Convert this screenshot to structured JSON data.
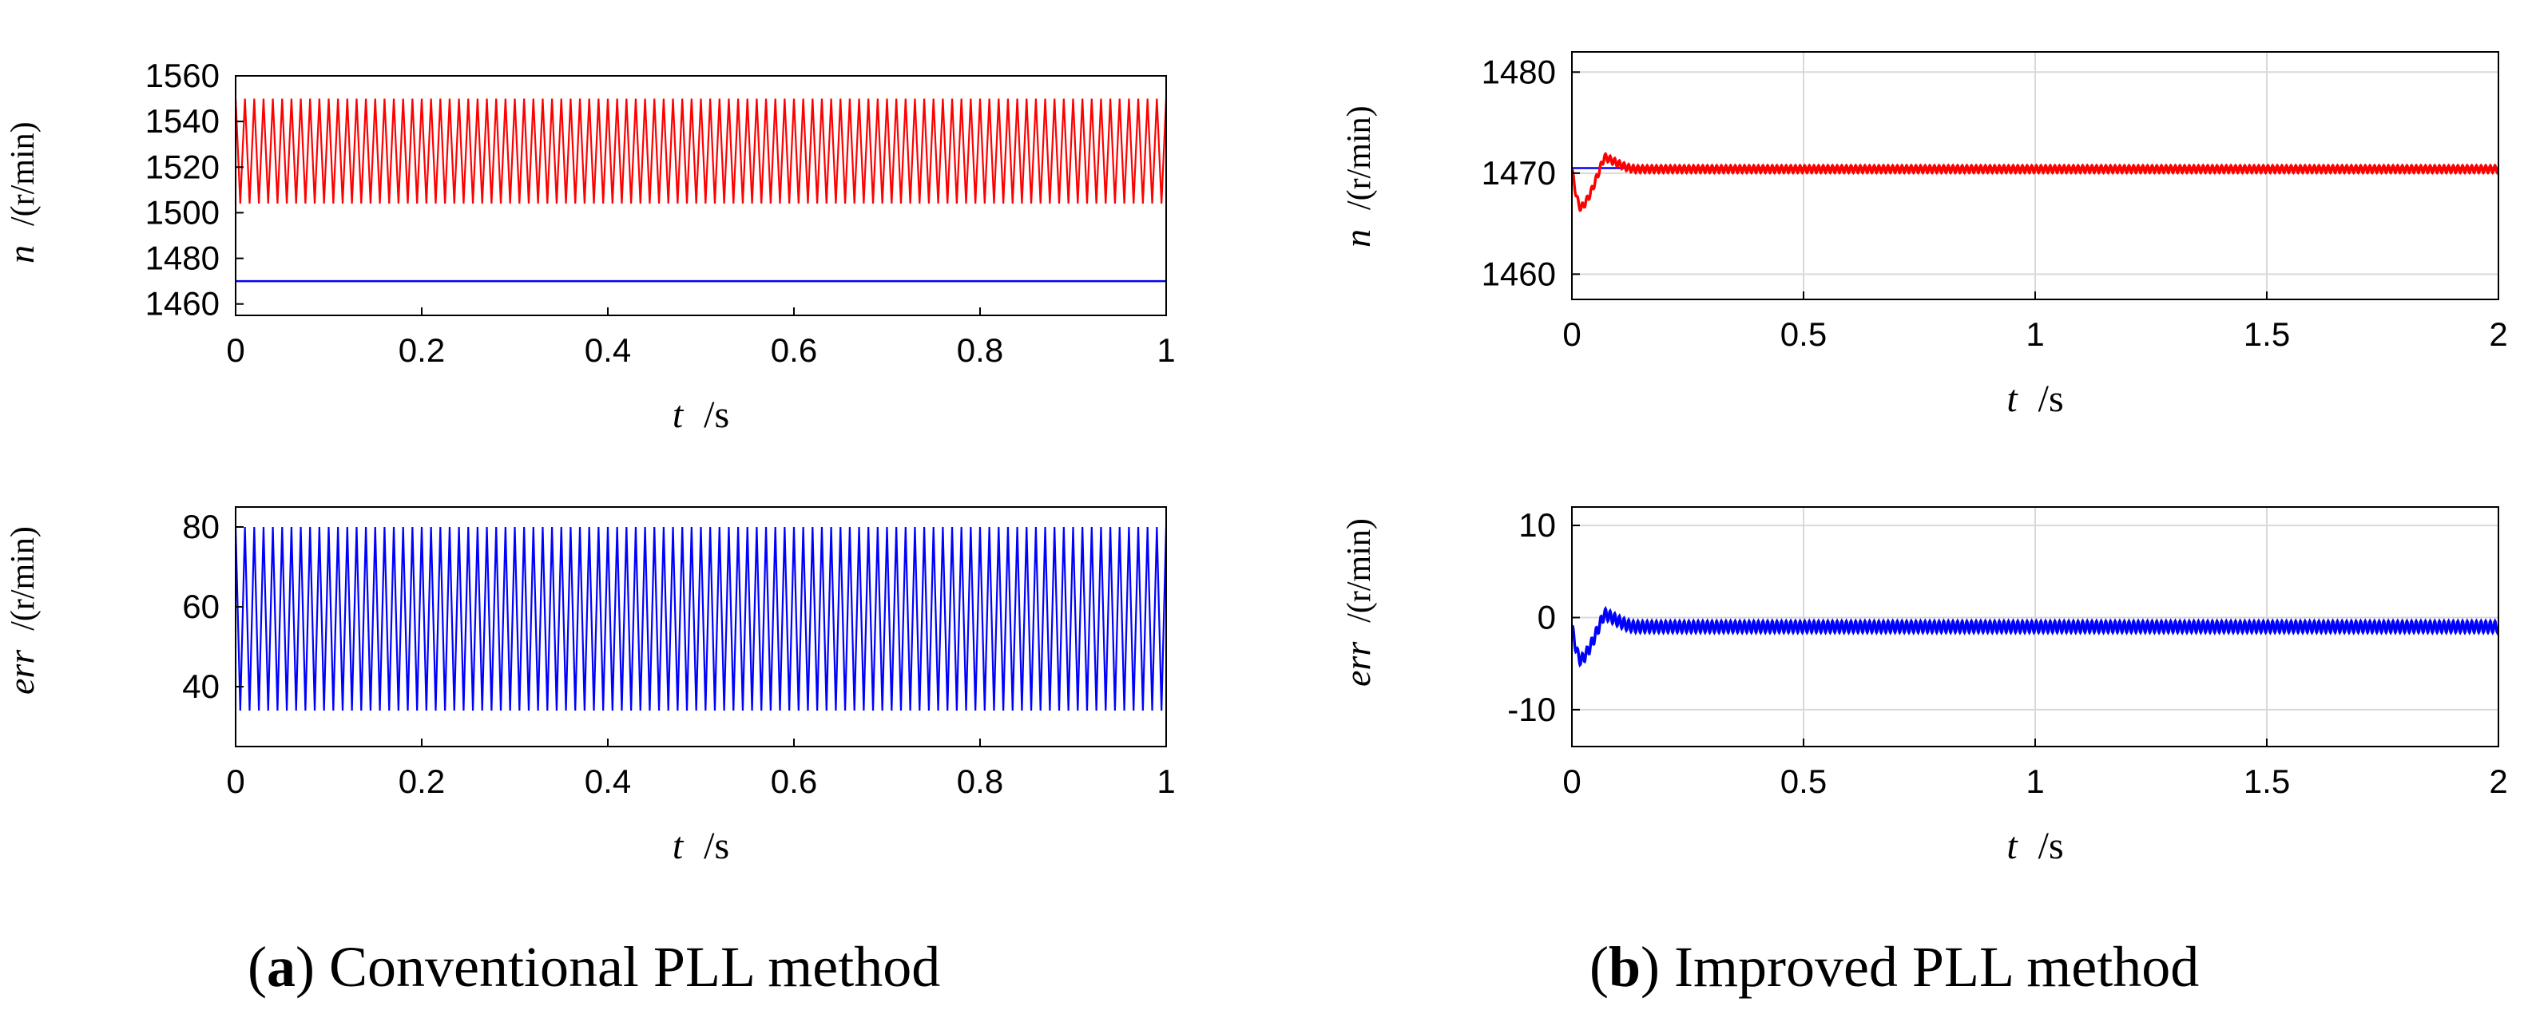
{
  "colors": {
    "red": "#ff0000",
    "blue": "#0000ff",
    "grid": "#d9d9d9",
    "axis": "#000000"
  },
  "captions": {
    "a": {
      "paren_open": "(",
      "letter": "a",
      "paren_close": ")",
      "text": " Conventional PLL method"
    },
    "b": {
      "paren_open": "(",
      "letter": "b",
      "paren_close": ")",
      "text": " Improved PLL method"
    }
  },
  "chart_data": [
    {
      "id": "a-top",
      "type": "line",
      "ylabel_symbol": "n",
      "ylabel_unit": "/(r/min)",
      "xlabel_symbol": "t",
      "xlabel_unit": "/s",
      "xlim": [
        0,
        1
      ],
      "ylim": [
        1455,
        1560
      ],
      "xticks": [
        0,
        0.2,
        0.4,
        0.6,
        0.8,
        1
      ],
      "xtick_labels": [
        "0",
        "0.2",
        "0.4",
        "0.6",
        "0.8",
        "1"
      ],
      "yticks": [
        1460,
        1480,
        1500,
        1520,
        1540,
        1560
      ],
      "ytick_labels": [
        "1460",
        "1480",
        "1500",
        "1520",
        "1540",
        "1560"
      ],
      "grid": false,
      "series": [
        {
          "color": "red",
          "kind": "oscillation",
          "center": 1527,
          "amplitude": 23,
          "cycles": 100
        },
        {
          "color": "blue",
          "kind": "constant",
          "value": 1470
        }
      ]
    },
    {
      "id": "a-bottom",
      "type": "line",
      "ylabel_symbol": "err",
      "ylabel_unit": "/(r/min)",
      "xlabel_symbol": "t",
      "xlabel_unit": "/s",
      "xlim": [
        0,
        1
      ],
      "ylim": [
        25,
        85
      ],
      "xticks": [
        0,
        0.2,
        0.4,
        0.6,
        0.8,
        1
      ],
      "xtick_labels": [
        "0",
        "0.2",
        "0.4",
        "0.6",
        "0.8",
        "1"
      ],
      "yticks": [
        40,
        60,
        80
      ],
      "ytick_labels": [
        "40",
        "60",
        "80"
      ],
      "grid": false,
      "series": [
        {
          "color": "blue",
          "kind": "oscillation",
          "center": 57,
          "amplitude": 23,
          "cycles": 100
        }
      ]
    },
    {
      "id": "b-top",
      "type": "line",
      "ylabel_symbol": "n",
      "ylabel_unit": "/(r/min)",
      "xlabel_symbol": "t",
      "xlabel_unit": "/s",
      "xlim": [
        0,
        2
      ],
      "ylim": [
        1457.5,
        1482
      ],
      "xticks": [
        0,
        0.5,
        1,
        1.5,
        2
      ],
      "xtick_labels": [
        "0",
        "0.5",
        "1",
        "1.5",
        "2"
      ],
      "yticks": [
        1460,
        1470,
        1480
      ],
      "ytick_labels": [
        "1460",
        "1470",
        "1480"
      ],
      "grid": true,
      "series": [
        {
          "color": "blue",
          "kind": "constant",
          "value": 1470.5
        },
        {
          "color": "red",
          "kind": "transient",
          "steady": 1470.4,
          "dip": -3.8,
          "overshoot": 1.2,
          "ripple": 0.35,
          "cycles": 200
        }
      ]
    },
    {
      "id": "b-bottom",
      "type": "line",
      "ylabel_symbol": "err",
      "ylabel_unit": "/(r/min)",
      "xlabel_symbol": "t",
      "xlabel_unit": "/s",
      "xlim": [
        0,
        2
      ],
      "ylim": [
        -14,
        12
      ],
      "xticks": [
        0,
        0.5,
        1,
        1.5,
        2
      ],
      "xtick_labels": [
        "0",
        "0.5",
        "1",
        "1.5",
        "2"
      ],
      "yticks": [
        -10,
        0,
        10
      ],
      "ytick_labels": [
        "-10",
        "0",
        "10"
      ],
      "grid": true,
      "series": [
        {
          "color": "blue",
          "kind": "transient",
          "steady": -1.0,
          "dip": -3.6,
          "overshoot": 1.4,
          "ripple": 0.6,
          "cycles": 200
        }
      ]
    }
  ]
}
